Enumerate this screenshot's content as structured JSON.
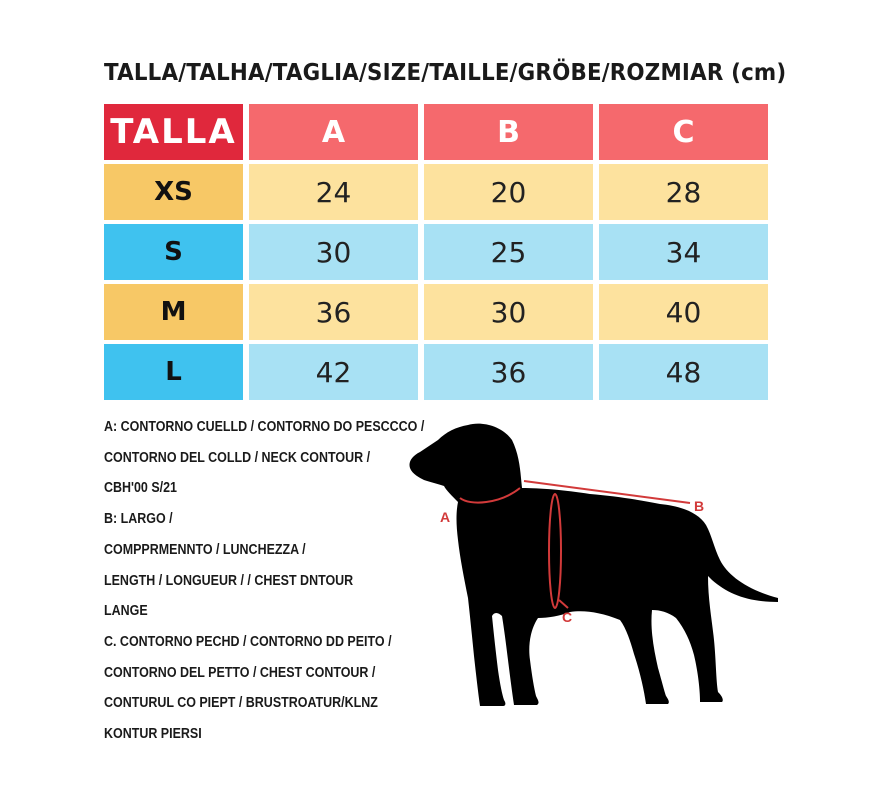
{
  "title": "TALLA/TALHA/TAGLIA/SIZE/TAILLE/GRÖBE/ROZMIAR (cm)",
  "table": {
    "header": [
      "TALLA",
      "A",
      "B",
      "C"
    ],
    "rows": [
      {
        "size": "XS",
        "a": "24",
        "b": "20",
        "c": "28"
      },
      {
        "size": "S",
        "a": "30",
        "b": "25",
        "c": "34"
      },
      {
        "size": "M",
        "a": "36",
        "b": "30",
        "c": "40"
      },
      {
        "size": "L",
        "a": "42",
        "b": "36",
        "c": "48"
      }
    ]
  },
  "legend": [
    "A: CONTORNO CUELLD / CONTORNO DO PESCCCO /",
    "CONTORNO DEL COLLD / NECK CONTOUR /",
    "CBH'00 S/21",
    "B: LARGO /",
    "COMPPRMENNTO / LUNCHEZZA /",
    "LENGTH / LONGUEUR / / CHEST DNTOUR",
    "LANGE",
    "C. CONTORNO PECHD / CONTORNO DD PEITO /",
    "CONTORNO DEL PETTO / CHEST CONTOUR /",
    "CONTURUL CO PIEPT / BRUSTROATUR/KLNZ",
    "KONTUR PIERSI"
  ],
  "diagram": {
    "icon": "dog-silhouette-icon",
    "marker_a": "A",
    "marker_b": "B",
    "marker_c": "C",
    "marker_color": "#d23a3a"
  },
  "colors": {
    "header_label": "#e0283c",
    "header_cols": "#f5696d",
    "yellow_label": "#f7c866",
    "yellow_cell": "#fde29e",
    "blue_label": "#3fc2ef",
    "blue_cell": "#a8e1f4"
  }
}
